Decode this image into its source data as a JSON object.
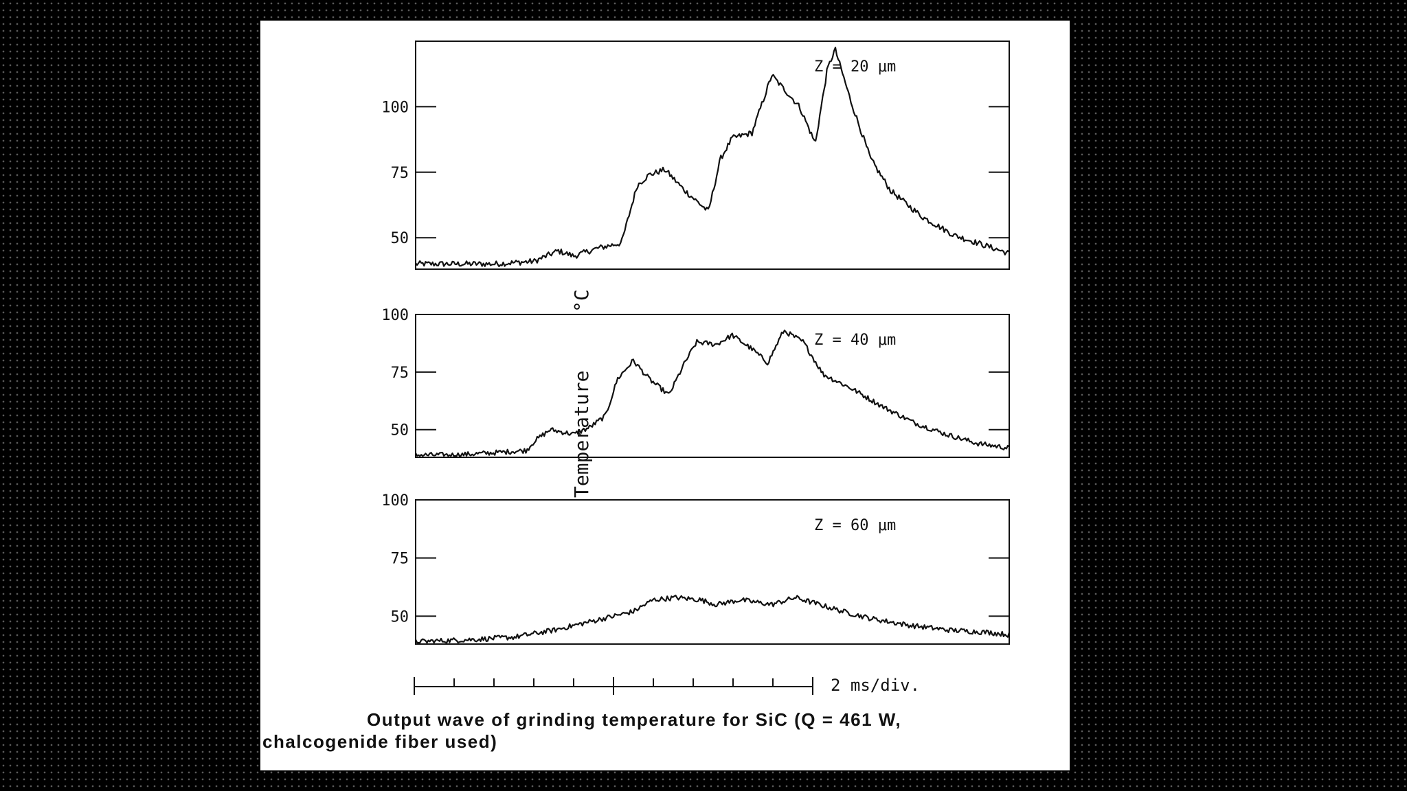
{
  "figure": {
    "ylabel": "Temperature",
    "yunit": "°C",
    "scale_label": "2 ms/div.",
    "caption_line1": "Output wave of grinding temperature for SiC (Q  =  461  W,",
    "caption_line2": "chalcogenide fiber used)"
  },
  "chart_data": [
    {
      "type": "line",
      "title": "Z = 20 μm",
      "ylabel": "Temperature °C",
      "xlabel": "2 ms/div.",
      "yticks": [
        50,
        75,
        100
      ],
      "ylim": [
        38,
        125
      ],
      "xlim": [
        0,
        15
      ],
      "series": [
        {
          "name": "Z = 20 μm",
          "x": [
            0,
            1.0,
            2.0,
            3.0,
            3.6,
            4.0,
            4.6,
            5.2,
            5.6,
            5.9,
            6.3,
            6.8,
            7.4,
            7.7,
            8.0,
            8.5,
            9.0,
            9.7,
            10.1,
            10.4,
            10.6,
            11.0,
            11.5,
            12.0,
            12.8,
            13.6,
            14.4,
            15.0
          ],
          "y": [
            40,
            40,
            40,
            41,
            45,
            43,
            46,
            48,
            70,
            74,
            76,
            68,
            60,
            80,
            88,
            90,
            112,
            100,
            86,
            114,
            122,
            102,
            80,
            68,
            58,
            51,
            47,
            44
          ]
        }
      ]
    },
    {
      "type": "line",
      "title": "Z = 40 μm",
      "ylabel": "Temperature °C",
      "xlabel": "2 ms/div.",
      "yticks": [
        50,
        75,
        100
      ],
      "ylim": [
        38,
        100
      ],
      "xlim": [
        0,
        15
      ],
      "series": [
        {
          "name": "Z = 40 μm",
          "x": [
            0,
            1.0,
            2.0,
            2.8,
            3.0,
            3.4,
            4.0,
            4.4,
            4.8,
            5.1,
            5.5,
            5.9,
            6.4,
            6.8,
            7.1,
            7.6,
            8.0,
            8.5,
            8.9,
            9.3,
            9.8,
            10.3,
            11.0,
            11.8,
            12.6,
            13.4,
            14.2,
            15.0
          ],
          "y": [
            39,
            39,
            40,
            41,
            45,
            50,
            48,
            51,
            56,
            72,
            80,
            72,
            65,
            79,
            88,
            87,
            91,
            85,
            79,
            93,
            88,
            74,
            68,
            60,
            53,
            48,
            44,
            42
          ]
        }
      ]
    },
    {
      "type": "line",
      "title": "Z = 60 μm",
      "ylabel": "Temperature °C",
      "xlabel": "2 ms/div.",
      "yticks": [
        50,
        75,
        100
      ],
      "ylim": [
        38,
        100
      ],
      "xlim": [
        0,
        15
      ],
      "series": [
        {
          "name": "Z = 60 μm",
          "x": [
            0,
            1.5,
            2.5,
            3.5,
            4.5,
            5.5,
            6.0,
            6.6,
            7.2,
            7.6,
            8.2,
            9.0,
            9.6,
            10.0,
            10.8,
            11.5,
            12.5,
            13.5,
            14.5,
            15.0
          ],
          "y": [
            39,
            40,
            41,
            44,
            48,
            52,
            57,
            58,
            57,
            55,
            57,
            55,
            58,
            56,
            52,
            49,
            46,
            44,
            43,
            42
          ]
        }
      ]
    }
  ]
}
